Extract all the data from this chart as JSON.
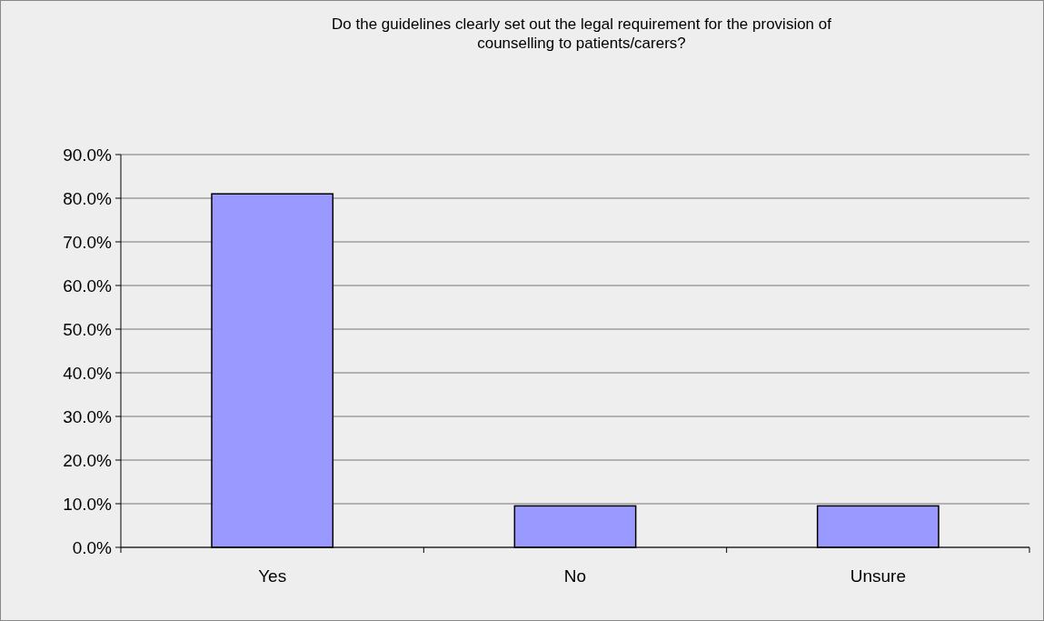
{
  "chart_data": {
    "type": "bar",
    "title": "Do the guidelines clearly set out the legal requirement for the provision of\ncounselling to patients/carers?",
    "categories": [
      "Yes",
      "No",
      "Unsure"
    ],
    "values": [
      81.0,
      9.5,
      9.5
    ],
    "color": "#9999ff",
    "ylim": [
      0,
      90
    ],
    "yticks": [
      {
        "value": 0,
        "label": "0.0%"
      },
      {
        "value": 10,
        "label": "10.0%"
      },
      {
        "value": 20,
        "label": "20.0%"
      },
      {
        "value": 30,
        "label": "30.0%"
      },
      {
        "value": 40,
        "label": "40.0%"
      },
      {
        "value": 50,
        "label": "50.0%"
      },
      {
        "value": 60,
        "label": "60.0%"
      },
      {
        "value": 70,
        "label": "70.0%"
      },
      {
        "value": 80,
        "label": "80.0%"
      },
      {
        "value": 90,
        "label": "90.0%"
      }
    ],
    "grid": "y"
  }
}
